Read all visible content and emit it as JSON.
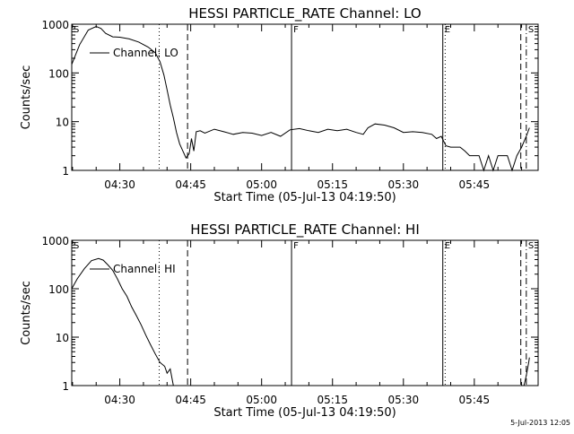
{
  "chart_data": [
    {
      "type": "line",
      "title": "HESSI PARTICLE_RATE Channel: LO",
      "xlabel": "Start Time (05-Jul-13 04:19:50)",
      "ylabel": "Counts/sec",
      "y_scale": "log",
      "ylim": [
        1,
        1000
      ],
      "xlim": [
        "04:19:50",
        "05:58:30"
      ],
      "x_ticks": [
        "04:30",
        "04:45",
        "05:00",
        "05:15",
        "05:30",
        "05:45"
      ],
      "y_ticks": [
        "1",
        "10",
        "100",
        "1000"
      ],
      "legend": {
        "label": "Channel: LO",
        "placement": "top-left"
      },
      "markers": [
        {
          "label": "S",
          "time": "04:19:50",
          "style": "solid"
        },
        {
          "label": "",
          "time": "04:38:20",
          "style": "dotted"
        },
        {
          "label": "",
          "time": "04:44:20",
          "style": "dashed"
        },
        {
          "label": "F",
          "time": "05:06:20",
          "style": "solid"
        },
        {
          "label": "E",
          "time": "05:38:20",
          "style": "solid"
        },
        {
          "label": "",
          "time": "05:38:50",
          "style": "dotted"
        },
        {
          "label": "",
          "time": "05:54:50",
          "style": "dashed"
        },
        {
          "label": "S",
          "time": "05:56:00",
          "style": "dashdot"
        }
      ],
      "series": [
        {
          "name": "Channel: LO",
          "x": [
            "04:19:50",
            "04:21:30",
            "04:23:20",
            "04:25:00",
            "04:26:00",
            "04:27:00",
            "04:28:30",
            "04:30:00",
            "04:32:00",
            "04:34:00",
            "04:36:00",
            "04:37:30",
            "04:38:30",
            "04:39:20",
            "04:40:00",
            "04:40:40",
            "04:41:20",
            "04:42:00",
            "04:42:40",
            "04:43:20",
            "04:44:00",
            "04:44:40",
            "04:45:10",
            "04:45:40",
            "04:46:10",
            "04:47:00",
            "04:48:00",
            "04:50:00",
            "04:52:00",
            "04:54:00",
            "04:56:00",
            "04:58:00",
            "05:00:00",
            "05:02:00",
            "05:04:00",
            "05:06:00",
            "05:08:00",
            "05:10:00",
            "05:12:00",
            "05:14:00",
            "05:16:00",
            "05:18:00",
            "05:20:00",
            "05:21:30",
            "05:22:30",
            "05:24:00",
            "05:26:00",
            "05:28:00",
            "05:30:00",
            "05:32:00",
            "05:34:00",
            "05:36:00",
            "05:37:00",
            "05:38:00",
            "05:39:00",
            "05:40:00",
            "05:41:00",
            "05:42:00",
            "05:43:00",
            "05:44:00",
            "05:45:00",
            "05:46:00",
            "05:47:00",
            "05:48:00",
            "05:49:00",
            "05:50:00",
            "05:51:00",
            "05:52:00",
            "05:53:00",
            "05:54:00",
            "05:55:00",
            "05:56:00",
            "05:56:40"
          ],
          "y": [
            150,
            380,
            760,
            900,
            820,
            650,
            550,
            540,
            500,
            430,
            340,
            260,
            170,
            90,
            45,
            22,
            12,
            6,
            3.5,
            2.5,
            1.8,
            2.2,
            4.5,
            2.5,
            6.2,
            6.5,
            5.8,
            7.0,
            6.2,
            5.5,
            6.0,
            5.8,
            5.2,
            6.0,
            5.0,
            6.8,
            7.2,
            6.5,
            6.0,
            7.0,
            6.5,
            7.0,
            6.0,
            5.5,
            7.5,
            9.0,
            8.5,
            7.5,
            6.0,
            6.2,
            6.0,
            5.5,
            4.5,
            5.0,
            3.2,
            3.0,
            3.0,
            3.0,
            2.5,
            2.0,
            2.0,
            2.0,
            1.0,
            2.0,
            1.0,
            2.0,
            2.0,
            2.0,
            1.0,
            2.0,
            3.0,
            5.0,
            7.5
          ]
        }
      ]
    },
    {
      "type": "line",
      "title": "HESSI PARTICLE_RATE Channel: HI",
      "xlabel": "Start Time (05-Jul-13 04:19:50)",
      "ylabel": "Counts/sec",
      "y_scale": "log",
      "ylim": [
        1,
        1000
      ],
      "xlim": [
        "04:19:50",
        "05:58:30"
      ],
      "x_ticks": [
        "04:30",
        "04:45",
        "05:00",
        "05:15",
        "05:30",
        "05:45"
      ],
      "y_ticks": [
        "1",
        "10",
        "100",
        "1000"
      ],
      "legend": {
        "label": "Channel: HI",
        "placement": "top-left"
      },
      "markers": [
        {
          "label": "S",
          "time": "04:19:50",
          "style": "solid"
        },
        {
          "label": "",
          "time": "04:38:20",
          "style": "dotted"
        },
        {
          "label": "",
          "time": "04:44:20",
          "style": "dashed"
        },
        {
          "label": "F",
          "time": "05:06:20",
          "style": "solid"
        },
        {
          "label": "E",
          "time": "05:38:20",
          "style": "solid"
        },
        {
          "label": "",
          "time": "05:38:50",
          "style": "dotted"
        },
        {
          "label": "",
          "time": "05:54:50",
          "style": "dashed"
        },
        {
          "label": "S",
          "time": "05:56:00",
          "style": "dashdot"
        }
      ],
      "series": [
        {
          "name": "Channel: HI",
          "x": [
            "04:19:50",
            "04:21:00",
            "04:22:30",
            "04:24:00",
            "04:25:30",
            "04:26:30",
            "04:27:30",
            "04:28:30",
            "04:29:30",
            "04:30:30",
            "04:31:30",
            "04:32:30",
            "04:33:30",
            "04:34:30",
            "04:35:30",
            "04:36:30",
            "04:37:30",
            "04:38:30",
            "04:39:30",
            "04:40:00",
            "04:40:40",
            "04:41:20"
          ],
          "y": [
            100,
            160,
            260,
            380,
            420,
            390,
            310,
            240,
            160,
            100,
            70,
            42,
            28,
            18,
            11,
            7,
            4.5,
            3.0,
            2.5,
            1.8,
            2.2,
            1.0
          ]
        },
        {
          "name": "Channel: HI",
          "x": [
            "05:55:30",
            "05:56:00",
            "05:56:30",
            "05:56:40"
          ],
          "y": [
            1.0,
            1.6,
            3.0,
            3.8
          ]
        }
      ]
    }
  ],
  "timestamp": "5-Jul-2013 12:05"
}
